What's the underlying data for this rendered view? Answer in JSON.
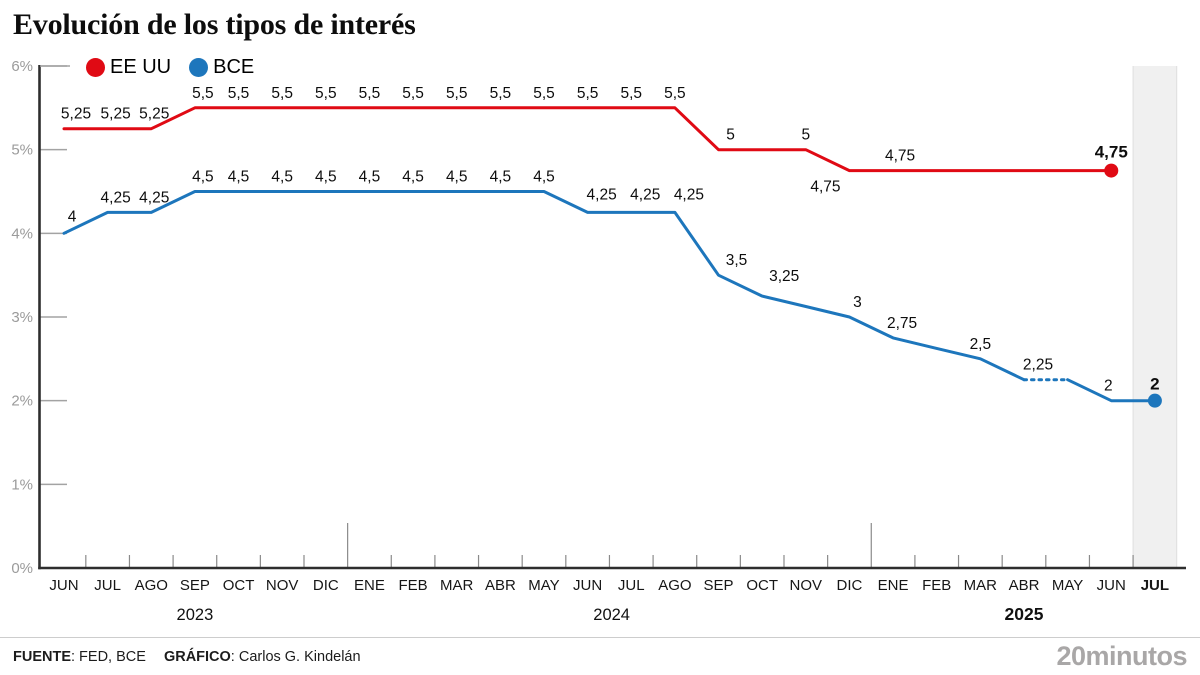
{
  "title": "Evolución de los tipos de interés",
  "legend": {
    "us_label": "EE UU",
    "bce_label": "BCE"
  },
  "colors": {
    "us": "#e00a14",
    "bce": "#1d76bc",
    "band_fill": "#f0f0f0",
    "band_edge": "#dedede",
    "axis": "#2e2e2e",
    "grid_tick": "#a3a3a3",
    "month_tick": "#8a8a8a",
    "y_label": "#9b9b9b",
    "text_dark": "#0d0d0d"
  },
  "chart_data": {
    "type": "line",
    "title": "Evolución de los tipos de interés",
    "ylabel": "",
    "xlabel": "",
    "ylim": [
      0,
      6
    ],
    "y_ticks": [
      "0%",
      "1%",
      "2%",
      "3%",
      "4%",
      "5%",
      "6%"
    ],
    "x_months": [
      "JUN",
      "JUL",
      "AGO",
      "SEP",
      "OCT",
      "NOV",
      "DIC",
      "ENE",
      "FEB",
      "MAR",
      "ABR",
      "MAY",
      "JUN",
      "JUL",
      "AGO",
      "SEP",
      "OCT",
      "NOV",
      "DIC",
      "ENE",
      "FEB",
      "MAR",
      "ABR",
      "MAY",
      "JUN",
      "JUL"
    ],
    "bold_month_indices": [
      25
    ],
    "x_years": [
      {
        "label": "2023",
        "pos": 3,
        "bold": false
      },
      {
        "label": "2024",
        "pos": 12.55,
        "bold": false
      },
      {
        "label": "2025",
        "pos": 22,
        "bold": true
      }
    ],
    "year_divider_positions": [
      6.5,
      18.5
    ],
    "highlight_month_index": 25,
    "legend_position": "top-left",
    "grid": false,
    "series": [
      {
        "name": "EE UU",
        "color_key": "us",
        "values": [
          5.25,
          5.25,
          5.25,
          5.5,
          5.5,
          5.5,
          5.5,
          5.5,
          5.5,
          5.5,
          5.5,
          5.5,
          5.5,
          5.5,
          5.5,
          5,
          5,
          5,
          4.75,
          4.75,
          4.75,
          4.75,
          4.75,
          4.75,
          4.75,
          null
        ],
        "segments": [
          {
            "from": 0,
            "to": 24,
            "style": "solid"
          }
        ],
        "end_dot": {
          "i": 24,
          "v": 4.75
        },
        "point_labels": [
          {
            "t": "5,25",
            "i": 0,
            "v": 5.25,
            "dx": 12
          },
          {
            "t": "5,25",
            "i": 1,
            "v": 5.25,
            "dx": 8
          },
          {
            "t": "5,25",
            "i": 2,
            "v": 5.25,
            "dx": 3
          },
          {
            "t": "5,5",
            "i": 3,
            "v": 5.5,
            "dx": 8
          },
          {
            "t": "5,5",
            "i": 4,
            "v": 5.5
          },
          {
            "t": "5,5",
            "i": 5,
            "v": 5.5
          },
          {
            "t": "5,5",
            "i": 6,
            "v": 5.5
          },
          {
            "t": "5,5",
            "i": 7,
            "v": 5.5
          },
          {
            "t": "5,5",
            "i": 8,
            "v": 5.5
          },
          {
            "t": "5,5",
            "i": 9,
            "v": 5.5
          },
          {
            "t": "5,5",
            "i": 10,
            "v": 5.5
          },
          {
            "t": "5,5",
            "i": 11,
            "v": 5.5
          },
          {
            "t": "5,5",
            "i": 12,
            "v": 5.5
          },
          {
            "t": "5,5",
            "i": 13,
            "v": 5.5
          },
          {
            "t": "5,5",
            "i": 14,
            "v": 5.5
          },
          {
            "t": "5",
            "i": 15,
            "v": 5,
            "dx": 12
          },
          {
            "t": "5",
            "i": 17,
            "v": 5
          },
          {
            "t": "4,75",
            "i": 18,
            "v": 4.75,
            "dx": -24,
            "dy": 16
          },
          {
            "t": "4,75",
            "i": 19,
            "v": 4.75,
            "dx": 7
          },
          {
            "t": "4,75",
            "i": 24,
            "v": 4.75,
            "dy": -18,
            "bold": true
          }
        ]
      },
      {
        "name": "BCE",
        "color_key": "bce",
        "values": [
          4,
          4.25,
          4.25,
          4.5,
          4.5,
          4.5,
          4.5,
          4.5,
          4.5,
          4.5,
          4.5,
          4.5,
          4.25,
          4.25,
          4.25,
          3.5,
          3.25,
          3.125,
          3,
          2.75,
          2.625,
          2.5,
          2.25,
          2.25,
          2,
          2
        ],
        "segments": [
          {
            "from": 0,
            "to": 22,
            "style": "solid"
          },
          {
            "from": 22,
            "to": 23,
            "style": "dotted"
          },
          {
            "from": 23,
            "to": 25,
            "style": "solid"
          }
        ],
        "end_dot": {
          "i": 25,
          "v": 2
        },
        "point_labels": [
          {
            "t": "4",
            "i": 0,
            "v": 4,
            "dx": 8,
            "dy": -17
          },
          {
            "t": "4,25",
            "i": 1,
            "v": 4.25,
            "dx": 8
          },
          {
            "t": "4,25",
            "i": 2,
            "v": 4.25,
            "dx": 3
          },
          {
            "t": "4,5",
            "i": 3,
            "v": 4.5,
            "dx": 8
          },
          {
            "t": "4,5",
            "i": 4,
            "v": 4.5
          },
          {
            "t": "4,5",
            "i": 5,
            "v": 4.5
          },
          {
            "t": "4,5",
            "i": 6,
            "v": 4.5
          },
          {
            "t": "4,5",
            "i": 7,
            "v": 4.5
          },
          {
            "t": "4,5",
            "i": 8,
            "v": 4.5
          },
          {
            "t": "4,5",
            "i": 9,
            "v": 4.5
          },
          {
            "t": "4,5",
            "i": 10,
            "v": 4.5
          },
          {
            "t": "4,5",
            "i": 11,
            "v": 4.5
          },
          {
            "t": "4,25",
            "i": 12,
            "v": 4.25,
            "dx": 14,
            "dy": -18
          },
          {
            "t": "4,25",
            "i": 13,
            "v": 4.25,
            "dx": 14,
            "dy": -18
          },
          {
            "t": "4,25",
            "i": 14,
            "v": 4.25,
            "dx": 14,
            "dy": -18
          },
          {
            "t": "3,5",
            "i": 15,
            "v": 3.5,
            "dx": 18
          },
          {
            "t": "3,25",
            "i": 16,
            "v": 3.25,
            "dx": 22,
            "dy": -20
          },
          {
            "t": "3",
            "i": 18,
            "v": 3,
            "dx": 8
          },
          {
            "t": "2,75",
            "i": 19,
            "v": 2.75,
            "dx": 9
          },
          {
            "t": "2,5",
            "i": 21,
            "v": 2.5
          },
          {
            "t": "2,25",
            "i": 22,
            "v": 2.25,
            "dx": 14
          },
          {
            "t": "2",
            "i": 24,
            "v": 2,
            "dx": -3
          },
          {
            "t": "2",
            "i": 25,
            "v": 2,
            "dy": -16,
            "bold": true
          }
        ]
      }
    ]
  },
  "footer": {
    "source_label": "FUENTE",
    "source_value": ": FED, BCE",
    "graphic_label": "GRÁFICO",
    "graphic_value": ": Carlos G. Kindelán",
    "brand": "20minutos"
  }
}
